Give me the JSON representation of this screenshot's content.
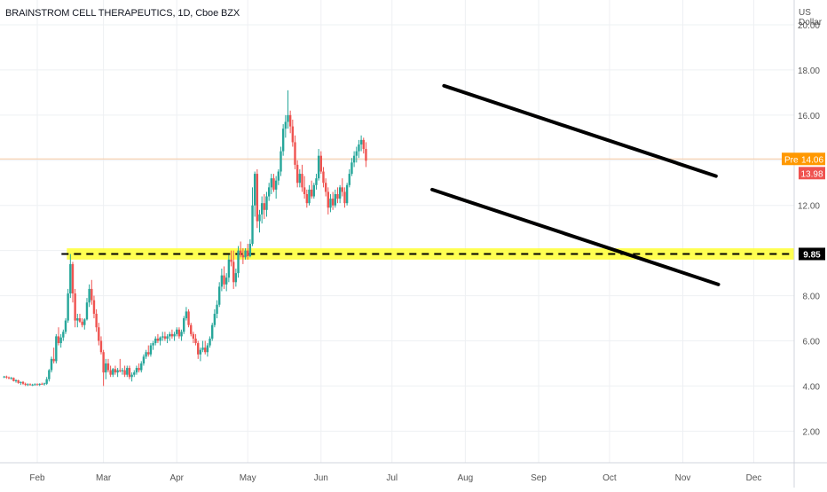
{
  "chart_data": {
    "type": "candlestick",
    "title": "BRAINSTROM CELL THERAPEUTICS, 1D, Cboe BZX",
    "currency_label": "US Dollar",
    "ylim": [
      0.6,
      21.1
    ],
    "y_ticks": [
      "2.00",
      "4.00",
      "6.00",
      "8.00",
      "10.00",
      "12.00",
      "14.00",
      "16.00",
      "18.00",
      "20.00"
    ],
    "x_ticks": [
      {
        "label": "Feb",
        "day": 0
      },
      {
        "label": "Mar",
        "day": 28
      },
      {
        "label": "Apr",
        "day": 59
      },
      {
        "label": "May",
        "day": 89
      },
      {
        "label": "Jun",
        "day": 120
      },
      {
        "label": "Jul",
        "day": 150
      },
      {
        "label": "Aug",
        "day": 181
      },
      {
        "label": "Sep",
        "day": 212
      },
      {
        "label": "Oct",
        "day": 242
      },
      {
        "label": "Nov",
        "day": 273
      },
      {
        "label": "Dec",
        "day": 303
      }
    ],
    "up_color": "#26a69a",
    "down_color": "#ef5350",
    "pre_market": {
      "label": "Pre",
      "value": "14.06",
      "color": "#ff9800"
    },
    "last_price": {
      "value": "13.98",
      "color": "#ef5350"
    },
    "support_level": {
      "value": "9.85",
      "band": [
        9.6,
        10.1
      ],
      "color": "#ffff33",
      "label_bg": "#000000"
    },
    "trendlines": [
      {
        "name": "upper-channel",
        "from": {
          "day": 172,
          "price": 17.3
        },
        "to": {
          "day": 287,
          "price": 13.3
        }
      },
      {
        "name": "lower-channel",
        "from": {
          "day": 167,
          "price": 12.7
        },
        "to": {
          "day": 288,
          "price": 8.5
        }
      }
    ],
    "candles": [
      [
        -14,
        4.4,
        4.45,
        4.35,
        4.42
      ],
      [
        -13,
        4.42,
        4.46,
        4.32,
        4.38
      ],
      [
        -12,
        4.38,
        4.42,
        4.3,
        4.34
      ],
      [
        -11,
        4.34,
        4.4,
        4.28,
        4.36
      ],
      [
        -10,
        4.36,
        4.38,
        4.2,
        4.22
      ],
      [
        -9,
        4.22,
        4.3,
        4.15,
        4.25
      ],
      [
        -8,
        4.25,
        4.28,
        4.1,
        4.14
      ],
      [
        -7,
        4.14,
        4.2,
        4.05,
        4.18
      ],
      [
        -6,
        4.18,
        4.22,
        4.05,
        4.1
      ],
      [
        -5,
        4.1,
        4.15,
        4.0,
        4.05
      ],
      [
        -4,
        4.05,
        4.12,
        4.0,
        4.08
      ],
      [
        -3,
        4.08,
        4.12,
        4.02,
        4.04
      ],
      [
        -2,
        4.04,
        4.1,
        4.0,
        4.06
      ],
      [
        -1,
        4.06,
        4.12,
        4.02,
        4.08
      ],
      [
        0,
        4.08,
        4.12,
        4.02,
        4.05
      ],
      [
        1,
        4.05,
        4.12,
        4.0,
        4.1
      ],
      [
        2,
        4.1,
        4.15,
        4.05,
        4.08
      ],
      [
        3,
        4.08,
        4.15,
        4.02,
        4.12
      ],
      [
        4,
        4.1,
        4.4,
        4.05,
        4.3
      ],
      [
        5,
        4.3,
        4.75,
        4.2,
        4.7
      ],
      [
        6,
        4.7,
        5.3,
        4.6,
        5.2
      ],
      [
        7,
        5.2,
        5.7,
        5.0,
        5.1
      ],
      [
        8,
        5.1,
        6.3,
        5.0,
        6.2
      ],
      [
        9,
        6.2,
        6.6,
        5.8,
        5.9
      ],
      [
        10,
        5.9,
        6.3,
        5.7,
        6.15
      ],
      [
        11,
        6.15,
        6.5,
        6.0,
        6.4
      ],
      [
        12,
        6.4,
        7.0,
        6.3,
        6.9
      ],
      [
        13,
        6.9,
        8.3,
        6.8,
        8.1
      ],
      [
        14,
        8.1,
        9.85,
        7.9,
        9.4
      ],
      [
        15,
        9.4,
        9.5,
        7.7,
        8.1
      ],
      [
        16,
        8.1,
        8.3,
        6.6,
        6.9
      ],
      [
        17,
        6.9,
        7.2,
        6.6,
        7.0
      ],
      [
        18,
        7.0,
        7.2,
        6.8,
        6.85
      ],
      [
        19,
        6.85,
        7.0,
        6.6,
        6.7
      ],
      [
        20,
        6.7,
        7.0,
        6.5,
        6.95
      ],
      [
        21,
        6.95,
        7.9,
        6.9,
        7.7
      ],
      [
        22,
        7.7,
        8.5,
        7.5,
        8.3
      ],
      [
        23,
        8.3,
        8.7,
        7.6,
        7.8
      ],
      [
        24,
        7.8,
        8.0,
        7.0,
        7.2
      ],
      [
        25,
        7.2,
        7.4,
        6.4,
        6.6
      ],
      [
        26,
        6.6,
        6.8,
        5.8,
        6.0
      ],
      [
        27,
        6.0,
        6.2,
        5.4,
        5.5
      ],
      [
        28,
        5.5,
        5.6,
        4.0,
        4.6
      ],
      [
        29,
        4.6,
        5.2,
        4.3,
        5.0
      ],
      [
        30,
        5.0,
        5.2,
        4.6,
        4.7
      ],
      [
        31,
        4.7,
        4.9,
        4.4,
        4.5
      ],
      [
        32,
        4.5,
        4.8,
        4.4,
        4.75
      ],
      [
        33,
        4.75,
        4.9,
        4.5,
        4.6
      ],
      [
        34,
        4.6,
        4.8,
        4.4,
        4.7
      ],
      [
        35,
        4.7,
        5.2,
        4.6,
        4.65
      ],
      [
        36,
        4.65,
        4.8,
        4.5,
        4.7
      ],
      [
        37,
        4.7,
        4.9,
        4.4,
        4.5
      ],
      [
        38,
        4.5,
        4.9,
        4.4,
        4.8
      ],
      [
        39,
        4.8,
        4.9,
        4.3,
        4.4
      ],
      [
        40,
        4.4,
        4.6,
        4.2,
        4.5
      ],
      [
        41,
        4.5,
        4.7,
        4.4,
        4.6
      ],
      [
        42,
        4.6,
        4.9,
        4.5,
        4.8
      ],
      [
        43,
        4.8,
        5.0,
        4.6,
        4.7
      ],
      [
        44,
        4.7,
        5.1,
        4.6,
        5.0
      ],
      [
        45,
        5.0,
        5.4,
        4.9,
        5.3
      ],
      [
        46,
        5.3,
        5.6,
        5.2,
        5.5
      ],
      [
        47,
        5.5,
        5.8,
        5.3,
        5.4
      ],
      [
        48,
        5.4,
        5.9,
        5.3,
        5.8
      ],
      [
        49,
        5.8,
        6.0,
        5.6,
        5.9
      ],
      [
        50,
        5.9,
        6.2,
        5.8,
        6.1
      ],
      [
        51,
        6.1,
        6.3,
        5.9,
        6.0
      ],
      [
        52,
        6.0,
        6.2,
        5.8,
        6.15
      ],
      [
        53,
        6.15,
        6.4,
        6.0,
        6.2
      ],
      [
        54,
        6.2,
        6.4,
        6.0,
        6.1
      ],
      [
        55,
        6.1,
        6.3,
        5.9,
        6.2
      ],
      [
        56,
        6.2,
        6.4,
        6.0,
        6.3
      ],
      [
        57,
        6.3,
        6.5,
        6.1,
        6.2
      ],
      [
        58,
        6.2,
        6.4,
        6.0,
        6.3
      ],
      [
        59,
        6.3,
        6.6,
        6.2,
        6.5
      ],
      [
        60,
        6.5,
        6.6,
        6.1,
        6.2
      ],
      [
        61,
        6.2,
        6.5,
        6.0,
        6.4
      ],
      [
        62,
        6.4,
        7.1,
        6.3,
        7.0
      ],
      [
        63,
        7.0,
        7.5,
        6.9,
        7.3
      ],
      [
        64,
        7.3,
        7.4,
        6.6,
        6.7
      ],
      [
        65,
        6.7,
        6.8,
        6.2,
        6.3
      ],
      [
        66,
        6.3,
        6.4,
        5.9,
        6.1
      ],
      [
        67,
        6.1,
        6.3,
        5.8,
        5.9
      ],
      [
        68,
        5.9,
        6.0,
        5.2,
        5.4
      ],
      [
        69,
        5.4,
        5.7,
        5.1,
        5.6
      ],
      [
        70,
        5.6,
        6.0,
        5.5,
        5.7
      ],
      [
        71,
        5.7,
        6.0,
        5.4,
        5.5
      ],
      [
        72,
        5.5,
        5.9,
        5.3,
        5.8
      ],
      [
        73,
        5.8,
        6.2,
        5.7,
        6.1
      ],
      [
        74,
        6.1,
        6.8,
        6.0,
        6.7
      ],
      [
        75,
        6.7,
        7.4,
        6.6,
        7.2
      ],
      [
        76,
        7.2,
        7.8,
        7.0,
        7.6
      ],
      [
        77,
        7.6,
        8.6,
        7.5,
        8.4
      ],
      [
        78,
        8.4,
        9.2,
        8.2,
        8.9
      ],
      [
        79,
        8.9,
        9.3,
        8.3,
        8.5
      ],
      [
        80,
        8.5,
        9.0,
        8.2,
        8.8
      ],
      [
        81,
        8.8,
        9.8,
        8.6,
        9.6
      ],
      [
        82,
        9.6,
        10.0,
        9.3,
        9.5
      ],
      [
        83,
        9.5,
        10.0,
        8.3,
        8.6
      ],
      [
        84,
        8.6,
        9.2,
        8.4,
        9.0
      ],
      [
        85,
        9.0,
        10.2,
        8.8,
        10.0
      ],
      [
        86,
        10.0,
        10.4,
        9.7,
        9.8
      ],
      [
        87,
        9.8,
        10.1,
        9.4,
        9.7
      ],
      [
        88,
        9.7,
        10.1,
        9.6,
        10.0
      ],
      [
        89,
        10.0,
        10.3,
        9.6,
        9.75
      ],
      [
        90,
        9.75,
        10.5,
        9.7,
        10.3
      ],
      [
        91,
        10.3,
        12.8,
        10.2,
        12.0
      ],
      [
        92,
        12.0,
        13.5,
        11.5,
        13.4
      ],
      [
        93,
        13.4,
        13.6,
        11.0,
        11.3
      ],
      [
        94,
        11.3,
        11.8,
        10.8,
        11.6
      ],
      [
        95,
        11.6,
        12.4,
        11.2,
        12.1
      ],
      [
        96,
        12.1,
        12.5,
        11.4,
        11.8
      ],
      [
        97,
        11.8,
        12.6,
        11.5,
        12.4
      ],
      [
        98,
        12.4,
        13.0,
        12.2,
        12.8
      ],
      [
        99,
        12.8,
        13.4,
        12.5,
        13.2
      ],
      [
        100,
        13.2,
        13.4,
        12.6,
        12.7
      ],
      [
        101,
        12.7,
        13.3,
        12.3,
        13.1
      ],
      [
        102,
        13.1,
        13.6,
        12.9,
        13.5
      ],
      [
        103,
        13.5,
        14.6,
        13.3,
        14.4
      ],
      [
        104,
        14.4,
        15.6,
        14.2,
        15.4
      ],
      [
        105,
        15.4,
        16.0,
        15.0,
        15.7
      ],
      [
        106,
        15.7,
        17.1,
        15.4,
        16.0
      ],
      [
        107,
        16.0,
        16.2,
        15.2,
        15.5
      ],
      [
        108,
        15.5,
        15.8,
        14.6,
        14.8
      ],
      [
        109,
        14.8,
        15.1,
        13.6,
        13.8
      ],
      [
        110,
        13.8,
        14.0,
        12.8,
        13.0
      ],
      [
        111,
        13.0,
        13.6,
        12.8,
        13.4
      ],
      [
        112,
        13.4,
        13.8,
        12.6,
        12.8
      ],
      [
        113,
        12.8,
        13.3,
        12.3,
        12.5
      ],
      [
        114,
        12.5,
        12.7,
        11.9,
        12.1
      ],
      [
        115,
        12.1,
        12.9,
        12.0,
        12.7
      ],
      [
        116,
        12.7,
        13.1,
        12.3,
        12.4
      ],
      [
        117,
        12.4,
        13.0,
        12.3,
        12.9
      ],
      [
        118,
        12.9,
        13.4,
        12.7,
        13.2
      ],
      [
        119,
        13.2,
        14.5,
        13.1,
        14.2
      ],
      [
        120,
        14.2,
        14.4,
        13.4,
        13.5
      ],
      [
        121,
        13.5,
        13.7,
        12.8,
        13.0
      ],
      [
        122,
        13.0,
        13.2,
        12.4,
        12.6
      ],
      [
        123,
        12.6,
        12.8,
        11.6,
        11.9
      ],
      [
        124,
        11.9,
        12.5,
        11.7,
        12.3
      ],
      [
        125,
        12.3,
        12.6,
        11.8,
        12.0
      ],
      [
        126,
        12.0,
        12.7,
        11.9,
        12.5
      ],
      [
        127,
        12.5,
        12.8,
        12.1,
        12.3
      ],
      [
        128,
        12.3,
        12.9,
        12.1,
        12.8
      ],
      [
        129,
        12.8,
        13.2,
        12.4,
        12.6
      ],
      [
        130,
        12.6,
        12.8,
        11.9,
        12.1
      ],
      [
        131,
        12.1,
        13.0,
        12.0,
        12.9
      ],
      [
        132,
        12.9,
        13.6,
        12.8,
        13.4
      ],
      [
        133,
        13.4,
        14.1,
        13.3,
        13.9
      ],
      [
        134,
        13.9,
        14.4,
        13.7,
        14.2
      ],
      [
        135,
        14.2,
        14.6,
        13.9,
        14.4
      ],
      [
        136,
        14.4,
        14.9,
        14.1,
        14.7
      ],
      [
        137,
        14.7,
        15.1,
        14.4,
        14.9
      ],
      [
        138,
        14.9,
        15.0,
        14.3,
        14.5
      ],
      [
        139,
        14.5,
        14.8,
        13.7,
        13.98
      ]
    ]
  }
}
